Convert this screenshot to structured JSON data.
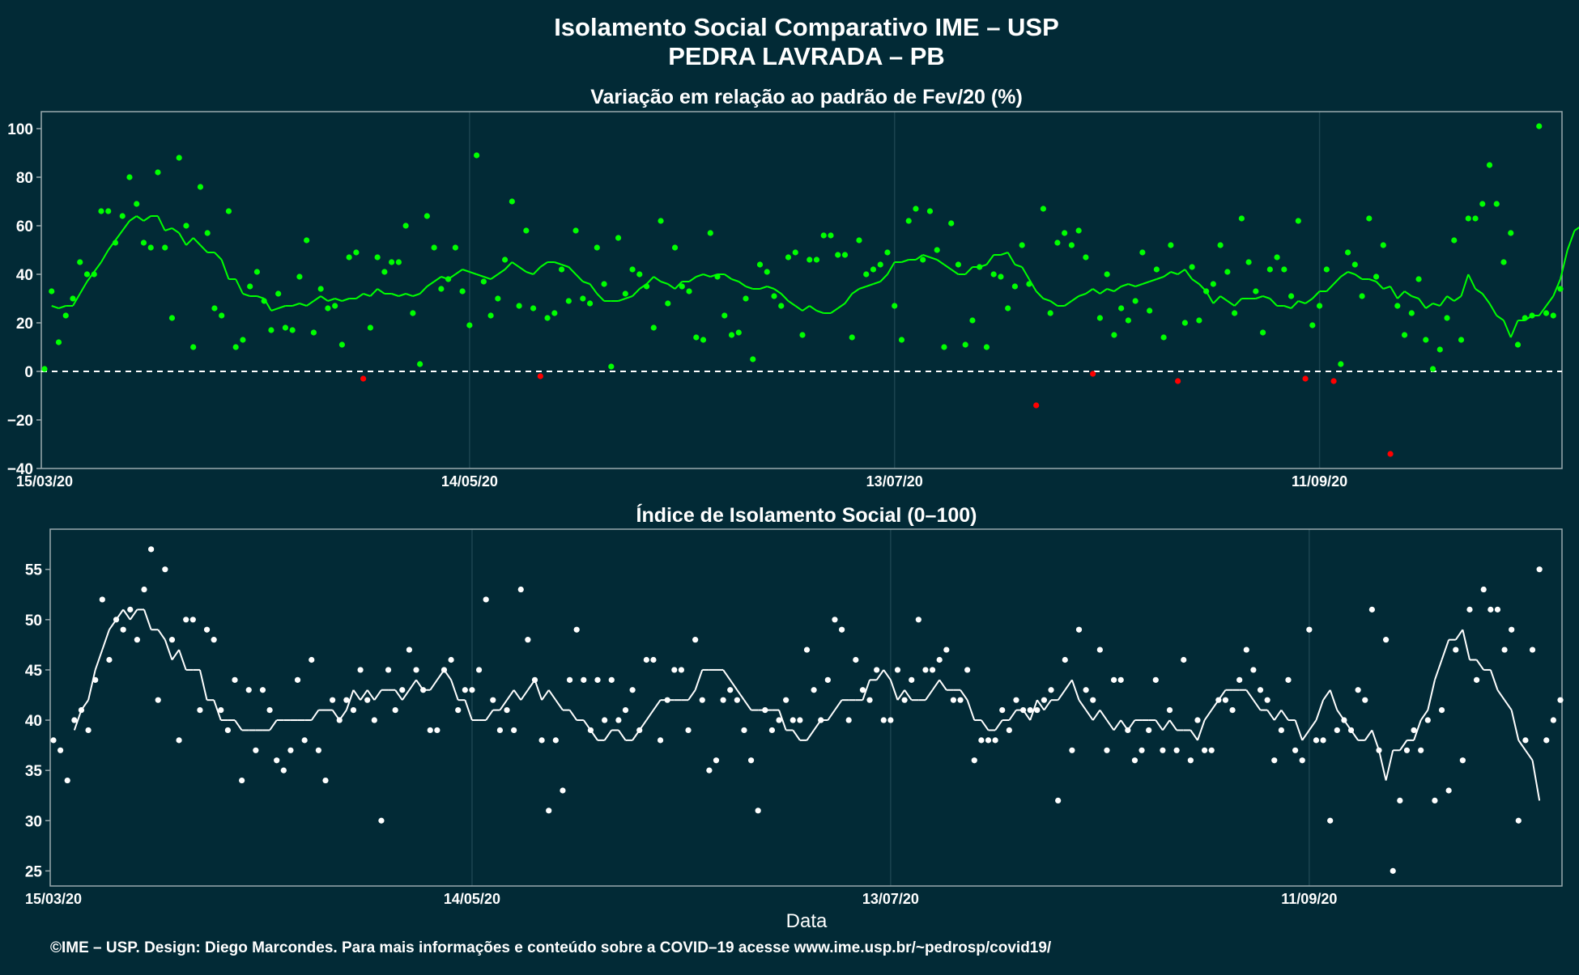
{
  "header": {
    "title": "Isolamento Social Comparativo IME – USP",
    "subtitle": "PEDRA LAVRADA – PB"
  },
  "footer": {
    "credit": "©IME – USP. Design: Diego Marcondes. Para mais informações e conteúdo sobre a COVID–19 acesse www.ime.usp.br/~pedrosp/covid19/"
  },
  "colors": {
    "background": "#022a36",
    "positive": "#00ff00",
    "negative": "#ff0000",
    "index": "#ffffff",
    "grid": "#1c4450",
    "axis": "#9aa9ad"
  },
  "chart_data": [
    {
      "type": "scatter",
      "title": "Variação em relação ao padrão de Fev/20 (%)",
      "xlabel": "",
      "ylabel": "",
      "x_start": "15/03/20",
      "x_ticks": [
        "15/03/20",
        "14/05/20",
        "13/07/20",
        "11/09/20"
      ],
      "ylim": [
        -40,
        107
      ],
      "y_ticks": [
        100,
        80,
        60,
        40,
        20,
        0,
        -20,
        -40
      ],
      "reference_line": 0,
      "series": [
        {
          "points": [
            1,
            33,
            12,
            23,
            30,
            45,
            40,
            40,
            66,
            66,
            53,
            64,
            80,
            69,
            53,
            51,
            82,
            51,
            22,
            88,
            60,
            10,
            76,
            57,
            26,
            23,
            66,
            10,
            13,
            35,
            41,
            29,
            17,
            32,
            18,
            17,
            39,
            54,
            16,
            34,
            26,
            27,
            11,
            47,
            49,
            -3,
            18,
            47,
            41,
            45,
            45,
            60,
            24,
            3,
            64,
            51,
            34,
            38,
            51,
            33,
            19,
            89,
            37,
            23,
            30,
            46,
            70,
            27,
            58,
            26,
            -2,
            22,
            24,
            42,
            29,
            58,
            30,
            28,
            51,
            36,
            2,
            55,
            32,
            42,
            40,
            35,
            18,
            62,
            28,
            51,
            35,
            33,
            14,
            13,
            57,
            39,
            23,
            15,
            16,
            30,
            5,
            44,
            41,
            31,
            27,
            47,
            49,
            15,
            46,
            46,
            56,
            56,
            48,
            48,
            14,
            54,
            40,
            42,
            44,
            49,
            27,
            13,
            62,
            67,
            46,
            66,
            50,
            10,
            61,
            44,
            11,
            21,
            43,
            10,
            40,
            39,
            26,
            35,
            52,
            36,
            -14,
            67,
            24,
            53,
            57,
            52,
            58,
            47,
            -1,
            22,
            40,
            15,
            26,
            21,
            29,
            49,
            25,
            42,
            14,
            52,
            -4,
            20,
            43,
            21,
            33,
            36,
            52,
            41,
            24,
            63,
            45,
            33,
            16,
            42,
            47,
            42,
            31,
            62,
            -3,
            19,
            27,
            42,
            -4,
            3,
            49,
            44,
            31,
            63,
            39,
            52,
            -34,
            27,
            15,
            24,
            38,
            13,
            1,
            9,
            22,
            54,
            13,
            63,
            63,
            69,
            85,
            69,
            45,
            57,
            11,
            22,
            23,
            101,
            24,
            23,
            34
          ],
          "ma7": [
            27,
            26,
            27,
            27,
            32,
            37,
            41,
            45,
            50,
            54,
            58,
            62,
            64,
            62,
            64,
            64,
            58,
            59,
            57,
            52,
            55,
            52,
            49,
            49,
            46,
            38,
            38,
            32,
            31,
            31,
            30,
            25,
            26,
            27,
            27,
            28,
            27,
            29,
            31,
            29,
            30,
            29,
            30,
            30,
            32,
            31,
            34,
            32,
            32,
            31,
            32,
            31,
            32,
            35,
            37,
            39,
            38,
            40,
            42,
            41,
            40,
            39,
            38,
            40,
            42,
            45,
            43,
            41,
            40,
            43,
            45,
            45,
            44,
            43,
            40,
            37,
            36,
            32,
            29,
            29,
            29,
            30,
            31,
            34,
            36,
            39,
            37,
            36,
            34,
            37,
            37,
            39,
            40,
            39,
            40,
            40,
            38,
            37,
            35,
            34,
            34,
            35,
            34,
            32,
            29,
            27,
            25,
            27,
            25,
            24,
            24,
            26,
            28,
            32,
            34,
            35,
            36,
            37,
            40,
            45,
            45,
            46,
            46,
            48,
            47,
            46,
            44,
            42,
            40,
            40,
            43,
            43,
            44,
            48,
            48,
            49,
            44,
            43,
            38,
            33,
            30,
            29,
            27,
            27,
            29,
            31,
            32,
            34,
            32,
            34,
            33,
            35,
            36,
            35,
            36,
            37,
            38,
            39,
            41,
            40,
            42,
            38,
            36,
            33,
            28,
            31,
            29,
            27,
            30,
            30,
            30,
            31,
            30,
            27,
            27,
            26,
            29,
            28,
            30,
            33,
            33,
            36,
            39,
            41,
            40,
            38,
            38,
            37,
            34,
            35,
            30,
            33,
            31,
            30,
            26,
            28,
            27,
            31,
            29,
            31,
            40,
            34,
            32,
            28,
            23,
            21,
            14,
            21,
            21,
            23,
            23,
            27,
            31,
            38,
            50,
            58,
            60,
            58,
            65,
            57,
            51,
            45,
            40,
            37,
            34
          ],
          "ma_start_index": 1
        }
      ]
    },
    {
      "type": "scatter",
      "title": "Índice de Isolamento Social (0–100)",
      "xlabel": "Data",
      "ylabel": "",
      "x_start": "15/03/20",
      "x_ticks": [
        "15/03/20",
        "14/05/20",
        "13/07/20",
        "11/09/20"
      ],
      "ylim": [
        23.5,
        59
      ],
      "y_ticks": [
        55,
        50,
        45,
        40,
        35,
        30,
        25
      ],
      "series": [
        {
          "points": [
            38,
            37,
            34,
            40,
            41,
            39,
            44,
            52,
            46,
            50,
            49,
            51,
            48,
            53,
            57,
            42,
            55,
            48,
            38,
            50,
            50,
            41,
            49,
            48,
            41,
            39,
            44,
            34,
            43,
            37,
            43,
            41,
            36,
            35,
            37,
            44,
            38,
            46,
            37,
            34,
            42,
            40,
            42,
            41,
            45,
            42,
            40,
            30,
            45,
            41,
            43,
            47,
            45,
            43,
            39,
            39,
            45,
            46,
            41,
            43,
            43,
            45,
            52,
            42,
            39,
            41,
            39,
            53,
            48,
            44,
            38,
            31,
            38,
            33,
            44,
            49,
            44,
            39,
            44,
            40,
            44,
            40,
            41,
            43,
            39,
            46,
            46,
            38,
            42,
            45,
            45,
            39,
            48,
            42,
            35,
            36,
            42,
            43,
            42,
            39,
            36,
            31,
            41,
            39,
            40,
            42,
            40,
            40,
            47,
            43,
            40,
            44,
            50,
            49,
            40,
            46,
            43,
            42,
            45,
            40,
            40,
            45,
            42,
            44,
            50,
            45,
            45,
            46,
            47,
            42,
            42,
            45,
            36,
            38,
            38,
            38,
            41,
            39,
            42,
            41,
            41,
            41,
            42,
            43,
            32,
            46,
            37,
            49,
            43,
            42,
            47,
            37,
            44,
            44,
            39,
            36,
            37,
            39,
            44,
            37,
            41,
            37,
            46,
            36,
            40,
            37,
            37,
            42,
            42,
            41,
            44,
            47,
            45,
            43,
            42,
            36,
            39,
            44,
            37,
            36,
            49,
            38,
            38,
            30,
            39,
            40,
            39,
            43,
            42,
            51,
            37,
            48,
            25,
            32,
            37,
            39,
            37,
            40,
            32,
            41,
            33,
            47,
            36,
            51,
            44,
            53,
            51,
            51,
            47,
            49,
            30,
            38,
            47,
            55,
            38,
            40,
            42
          ],
          "ma7": [
            39,
            41,
            42,
            45,
            47,
            49,
            50,
            51,
            50,
            51,
            51,
            49,
            49,
            48,
            46,
            47,
            45,
            45,
            45,
            42,
            42,
            40,
            40,
            40,
            39,
            39,
            39,
            39,
            39,
            40,
            40,
            40,
            40,
            40,
            40,
            41,
            41,
            41,
            40,
            41,
            43,
            42,
            43,
            42,
            43,
            43,
            43,
            42,
            43,
            44,
            43,
            43,
            44,
            45,
            44,
            42,
            42,
            40,
            40,
            40,
            41,
            41,
            42,
            43,
            42,
            43,
            44,
            42,
            43,
            42,
            41,
            41,
            40,
            40,
            39,
            38,
            38,
            39,
            39,
            38,
            38,
            39,
            40,
            41,
            42,
            42,
            42,
            42,
            42,
            43,
            45,
            45,
            45,
            45,
            44,
            43,
            42,
            41,
            41,
            41,
            41,
            41,
            39,
            39,
            38,
            38,
            39,
            40,
            40,
            41,
            42,
            42,
            42,
            42,
            44,
            44,
            45,
            44,
            42,
            43,
            42,
            42,
            42,
            43,
            44,
            43,
            43,
            43,
            42,
            40,
            40,
            39,
            39,
            40,
            40,
            41,
            41,
            40,
            42,
            41,
            42,
            42,
            43,
            44,
            42,
            41,
            40,
            41,
            40,
            39,
            40,
            39,
            40,
            40,
            40,
            40,
            39,
            40,
            39,
            39,
            39,
            38,
            40,
            41,
            42,
            43,
            43,
            43,
            43,
            42,
            41,
            41,
            40,
            41,
            40,
            40,
            38,
            39,
            40,
            42,
            43,
            41,
            40,
            39,
            38,
            38,
            39,
            37,
            34,
            37,
            37,
            38,
            38,
            40,
            41,
            44,
            46,
            48,
            48,
            49,
            46,
            46,
            45,
            45,
            43,
            42,
            41,
            38,
            37,
            36,
            32
          ],
          "ma_start_index": 3
        }
      ]
    }
  ]
}
